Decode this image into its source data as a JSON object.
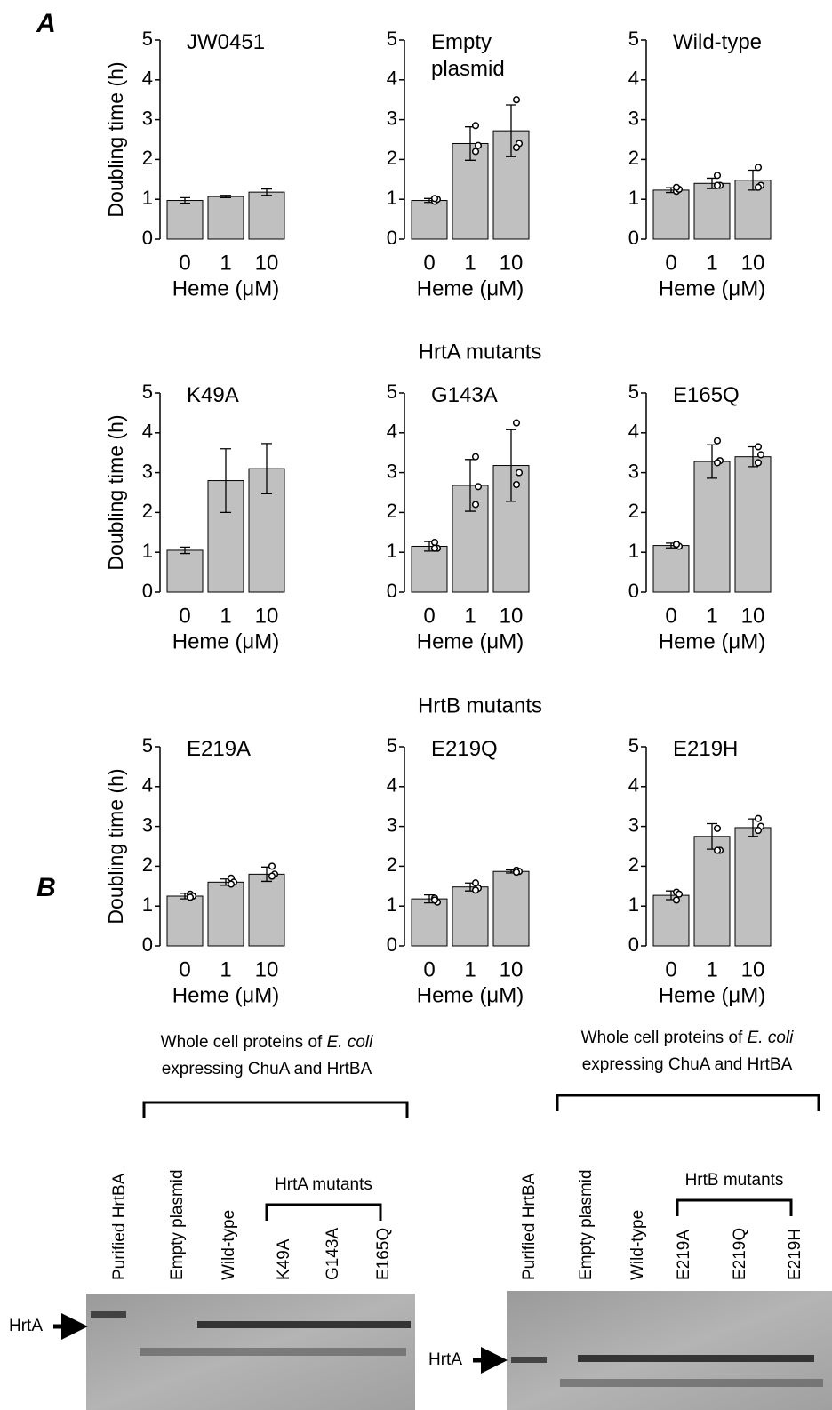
{
  "panel_a": {
    "label": "A",
    "row_titles": [
      "HrtA mutants",
      "HrtB mutants"
    ]
  },
  "chart_data": [
    {
      "type": "bar",
      "title": "JW0451",
      "ylabel": "Doubling time (h)",
      "xlabel": "Heme (μM)",
      "categories": [
        "0",
        "1",
        "10"
      ],
      "values": [
        0.97,
        1.07,
        1.18
      ],
      "errors": [
        0.07,
        0.03,
        0.08
      ],
      "points": [],
      "color": "#c0c0c0",
      "ylim": [
        0,
        5
      ],
      "yticks": [
        0,
        1,
        2,
        3,
        4,
        5
      ]
    },
    {
      "type": "bar",
      "title": "Empty plasmid",
      "xlabel": "Heme (μM)",
      "categories": [
        "0",
        "1",
        "10"
      ],
      "values": [
        0.97,
        2.4,
        2.72
      ],
      "errors": [
        0.05,
        0.42,
        0.65
      ],
      "points": [
        [
          0.95,
          1.0,
          1.02
        ],
        [
          2.85,
          2.35,
          2.2
        ],
        [
          3.5,
          2.4,
          2.3
        ]
      ],
      "color": "#c0c0c0",
      "ylim": [
        0,
        5
      ],
      "yticks": [
        0,
        1,
        2,
        3,
        4,
        5
      ]
    },
    {
      "type": "bar",
      "title": "Wild-type",
      "xlabel": "Heme (μM)",
      "categories": [
        "0",
        "1",
        "10"
      ],
      "values": [
        1.23,
        1.4,
        1.48
      ],
      "errors": [
        0.06,
        0.13,
        0.25
      ],
      "points": [
        [
          1.2,
          1.25,
          1.3
        ],
        [
          1.6,
          1.35,
          1.35
        ],
        [
          1.8,
          1.35,
          1.3
        ]
      ],
      "color": "#c0c0c0",
      "ylim": [
        0,
        5
      ],
      "yticks": [
        0,
        1,
        2,
        3,
        4,
        5
      ]
    },
    {
      "type": "bar",
      "title": "K49A",
      "ylabel": "Doubling time (h)",
      "xlabel": "Heme (μM)",
      "categories": [
        "0",
        "1",
        "10"
      ],
      "values": [
        1.05,
        2.8,
        3.1
      ],
      "errors": [
        0.08,
        0.8,
        0.63
      ],
      "points": [],
      "color": "#c0c0c0",
      "ylim": [
        0,
        5
      ],
      "yticks": [
        0,
        1,
        2,
        3,
        4,
        5
      ]
    },
    {
      "type": "bar",
      "title": "G143A",
      "xlabel": "Heme (μM)",
      "categories": [
        "0",
        "1",
        "10"
      ],
      "values": [
        1.15,
        2.68,
        3.18
      ],
      "errors": [
        0.12,
        0.65,
        0.9
      ],
      "points": [
        [
          1.25,
          1.1,
          1.1
        ],
        [
          3.4,
          2.65,
          2.2
        ],
        [
          4.25,
          3.0,
          2.7
        ]
      ],
      "color": "#c0c0c0",
      "ylim": [
        0,
        5
      ],
      "yticks": [
        0,
        1,
        2,
        3,
        4,
        5
      ]
    },
    {
      "type": "bar",
      "title": "E165Q",
      "xlabel": "Heme (μM)",
      "categories": [
        "0",
        "1",
        "10"
      ],
      "values": [
        1.17,
        3.28,
        3.4
      ],
      "errors": [
        0.06,
        0.42,
        0.25
      ],
      "points": [
        [
          1.2,
          1.15,
          1.2
        ],
        [
          3.8,
          3.3,
          3.25
        ],
        [
          3.65,
          3.45,
          3.25
        ]
      ],
      "color": "#c0c0c0",
      "ylim": [
        0,
        5
      ],
      "yticks": [
        0,
        1,
        2,
        3,
        4,
        5
      ]
    },
    {
      "type": "bar",
      "title": "E219A",
      "ylabel": "Doubling time (h)",
      "xlabel": "Heme (μM)",
      "categories": [
        "0",
        "1",
        "10"
      ],
      "values": [
        1.25,
        1.6,
        1.8
      ],
      "errors": [
        0.07,
        0.08,
        0.18
      ],
      "points": [
        [
          1.3,
          1.25,
          1.22
        ],
        [
          1.7,
          1.6,
          1.55
        ],
        [
          2.0,
          1.8,
          1.75
        ]
      ],
      "color": "#c0c0c0",
      "ylim": [
        0,
        5
      ],
      "yticks": [
        0,
        1,
        2,
        3,
        4,
        5
      ]
    },
    {
      "type": "bar",
      "title": "E219Q",
      "xlabel": "Heme (μM)",
      "categories": [
        "0",
        "1",
        "10"
      ],
      "values": [
        1.18,
        1.48,
        1.87
      ],
      "errors": [
        0.1,
        0.1,
        0.04
      ],
      "points": [
        [
          1.2,
          1.1,
          1.15
        ],
        [
          1.58,
          1.45,
          1.4
        ],
        [
          1.9,
          1.87,
          1.85
        ]
      ],
      "color": "#c0c0c0",
      "ylim": [
        0,
        5
      ],
      "yticks": [
        0,
        1,
        2,
        3,
        4,
        5
      ]
    },
    {
      "type": "bar",
      "title": "E219H",
      "xlabel": "Heme (μM)",
      "categories": [
        "0",
        "1",
        "10"
      ],
      "values": [
        1.27,
        2.75,
        2.97
      ],
      "errors": [
        0.11,
        0.32,
        0.22
      ],
      "points": [
        [
          1.35,
          1.3,
          1.15
        ],
        [
          2.95,
          2.4,
          2.4
        ],
        [
          3.2,
          3.0,
          2.9
        ]
      ],
      "color": "#c0c0c0",
      "ylim": [
        0,
        5
      ],
      "yticks": [
        0,
        1,
        2,
        3,
        4,
        5
      ]
    }
  ],
  "panel_b": {
    "label": "B",
    "blots": [
      {
        "header_prefix": "Whole cell proteins of",
        "header_species": "E. coli",
        "header_line2": "expressing ChuA and HrtBA",
        "lanes": [
          "Purified HrtBA",
          "Empty plasmid",
          "Wild-type",
          "K49A",
          "G143A",
          "E165Q"
        ],
        "group": "HrtA mutants",
        "marker": "HrtA"
      },
      {
        "header_prefix": "Whole cell proteins of",
        "header_species": "E. coli",
        "header_line2": "expressing ChuA and HrtBA",
        "lanes": [
          "Purified HrtBA",
          "Empty plasmid",
          "Wild-type",
          "E219A",
          "E219Q",
          "E219H"
        ],
        "group": "HrtB mutants",
        "marker": "HrtA"
      }
    ]
  }
}
